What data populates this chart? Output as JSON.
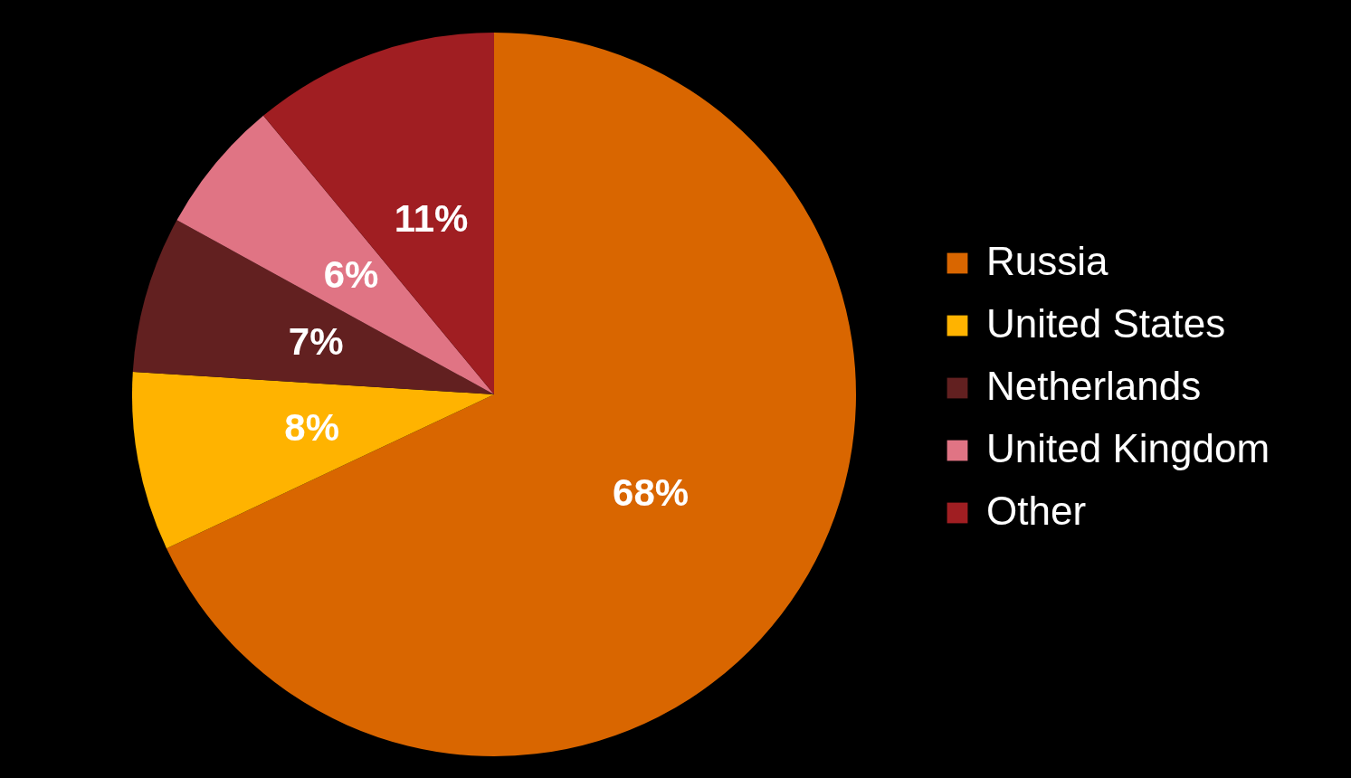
{
  "chart_data": {
    "type": "pie",
    "categories": [
      "Russia",
      "United States",
      "Netherlands",
      "United Kingdom",
      "Other"
    ],
    "values": [
      68,
      8,
      7,
      6,
      11
    ],
    "colors": [
      "#d96600",
      "#ffb300",
      "#622020",
      "#e07484",
      "#a01e22"
    ],
    "value_labels": [
      "68%",
      "8%",
      "7%",
      "6%",
      "11%"
    ],
    "legend": "right"
  }
}
